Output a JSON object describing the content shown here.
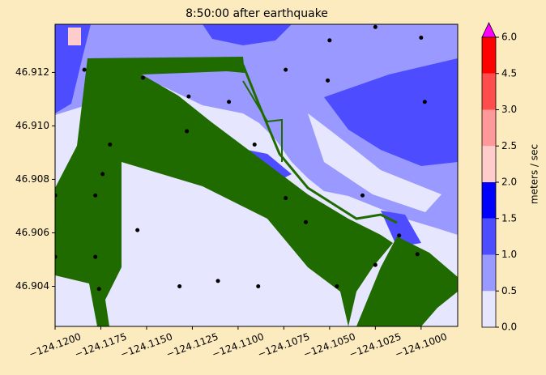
{
  "chart_data": {
    "type": "contour",
    "title": "8:50:00 after earthquake",
    "xlim": [
      -124.12,
      -124.098
    ],
    "ylim": [
      46.9025,
      46.9138
    ],
    "xticks": [
      {
        "value": -124.12,
        "label": "−124.1200"
      },
      {
        "value": -124.1175,
        "label": "−124.1175"
      },
      {
        "value": -124.115,
        "label": "−124.1150"
      },
      {
        "value": -124.1125,
        "label": "−124.1125"
      },
      {
        "value": -124.11,
        "label": "−124.1100"
      },
      {
        "value": -124.1075,
        "label": "−124.1075"
      },
      {
        "value": -124.105,
        "label": "−124.1050"
      },
      {
        "value": -124.1025,
        "label": "−124.1025"
      },
      {
        "value": -124.1,
        "label": "−124.1000"
      }
    ],
    "yticks": [
      46.904,
      46.906,
      46.908,
      {
        "value": 46.91,
        "label": "46.910"
      },
      46.912
    ],
    "colorbar": {
      "label": "meters / sec",
      "ticks": [
        {
          "value": 0,
          "label": "0.0"
        },
        {
          "value": 0.5,
          "label": "0.5"
        },
        {
          "value": 1,
          "label": "1.0"
        },
        {
          "value": 1.5,
          "label": "1.5"
        },
        {
          "value": 2,
          "label": "2.0"
        },
        {
          "value": 2.5,
          "label": "2.5"
        },
        {
          "value": 3,
          "label": "3.0"
        },
        {
          "value": 4.5,
          "label": "4.5"
        },
        {
          "value": 6,
          "label": "6.0"
        }
      ],
      "colors": [
        "#e6e6ff",
        "#9999ff",
        "#4d4dff",
        "#0000ff",
        "#ffcccc",
        "#ff9999",
        "#ff4d4d",
        "#ff0000"
      ],
      "extend_color": "#ff00ff"
    },
    "particles": {
      "color": "#000000",
      "x": [
        -124.1184,
        -124.1152,
        -124.1127,
        -124.1105,
        -124.1074,
        -124.1051,
        -124.0998,
        -124.105,
        -124.1025,
        -124.1,
        -124.1174,
        -124.1178,
        -124.12,
        -124.117,
        -124.1128,
        -124.1091,
        -124.1074,
        -124.1032,
        -124.1012,
        -124.12,
        -124.1178,
        -124.1176,
        -124.1132,
        -124.1111,
        -124.1089,
        -124.1046,
        -124.1025,
        -124.1002,
        -124.1063,
        -124.1155
      ],
      "y": [
        46.9121,
        46.9118,
        46.9111,
        46.9109,
        46.9121,
        46.9117,
        46.9109,
        46.9132,
        46.9137,
        46.9133,
        46.9082,
        46.9074,
        46.9074,
        46.9093,
        46.9098,
        46.9093,
        46.9073,
        46.9074,
        46.9059,
        46.9051,
        46.9051,
        46.9039,
        46.904,
        46.9042,
        46.904,
        46.904,
        46.9048,
        46.9052,
        46.9064,
        46.9061
      ]
    }
  }
}
